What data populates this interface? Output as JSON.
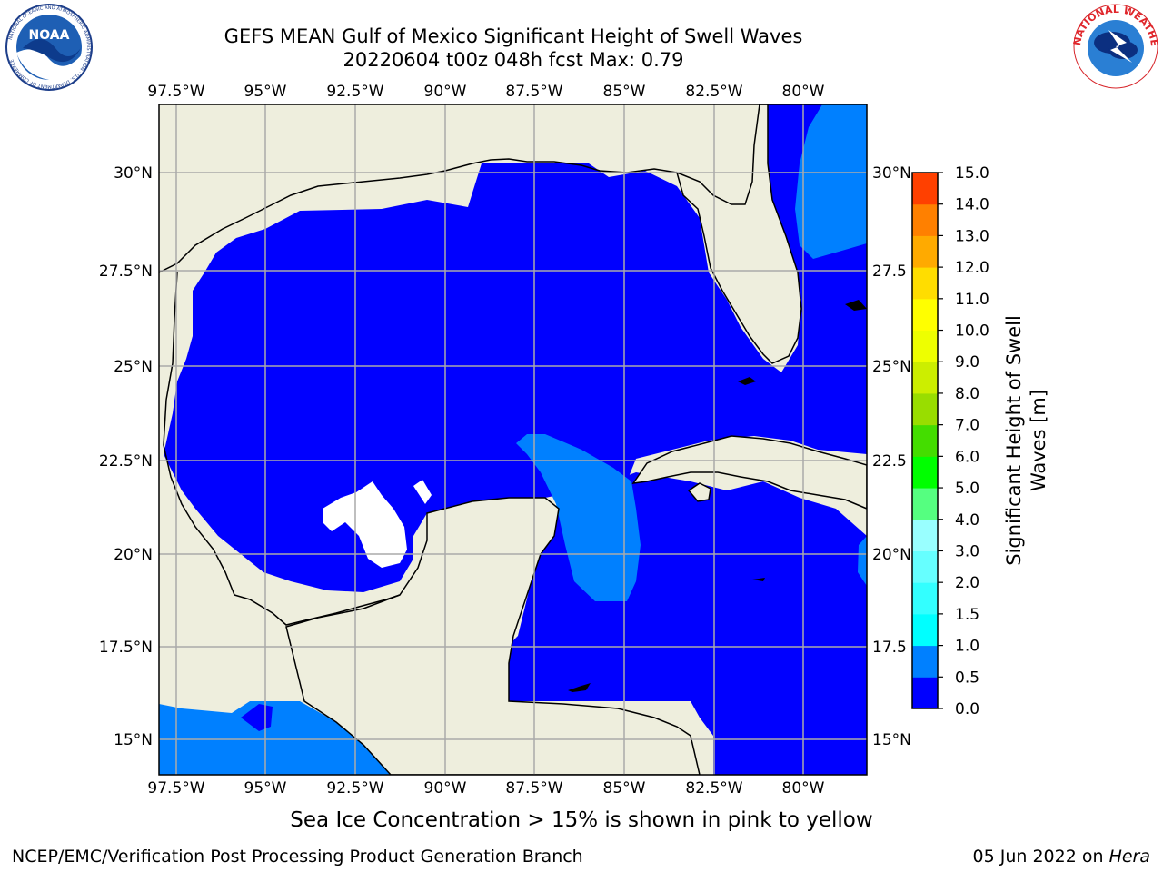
{
  "title": {
    "line1": "GEFS MEAN Gulf of Mexico Significant Height of Swell Waves",
    "line2": "20220604 t00z 048h fcst   Max: 0.79"
  },
  "logos": {
    "left": {
      "icon": "noaa-logo",
      "text": "NOAA",
      "ring_text": "NATIONAL OCEANIC AND ATMOSPHERIC ADMINISTRATION · U.S. DEPARTMENT OF COMMERCE"
    },
    "right": {
      "icon": "nws-logo",
      "ring_text": "NATIONAL WEATHER SERVICE"
    }
  },
  "map": {
    "lon_labels": [
      "97.5°W",
      "95°W",
      "92.5°W",
      "90°W",
      "87.5°W",
      "85°W",
      "82.5°W",
      "80°W"
    ],
    "lat_labels_left": [
      "30°N",
      "27.5°N",
      "25°N",
      "22.5°N",
      "20°N",
      "17.5°N",
      "15°N"
    ],
    "lat_labels_right": [
      "30°N",
      "27.5",
      "25°N",
      "22.5",
      "20°N",
      "17.5",
      "15°N"
    ],
    "colors": {
      "land": "#eeeedd",
      "sea_low": "#0000ff",
      "sea_mid": "#0080ff",
      "grid": "#aaaaaa",
      "coast": "#000000"
    }
  },
  "colorbar": {
    "label_line1": "Significant Height of Swell",
    "label_line2": "Waves [m]",
    "ticks": [
      "0.0",
      "0.5",
      "1.0",
      "1.5",
      "2.0",
      "3.0",
      "4.0",
      "5.0",
      "6.0",
      "7.0",
      "8.0",
      "9.0",
      "10.0",
      "11.0",
      "12.0",
      "13.0",
      "14.0",
      "15.0"
    ],
    "colors": [
      "#0000ff",
      "#0080ff",
      "#00ffff",
      "#33ffff",
      "#66ffff",
      "#99ffff",
      "#55ff80",
      "#00ff00",
      "#44dd00",
      "#99dd00",
      "#ccee00",
      "#eeff00",
      "#ffff00",
      "#ffdd00",
      "#ffaa00",
      "#ff8000",
      "#ff4000"
    ]
  },
  "subcaption": "Sea Ice Concentration > 15% is shown in pink to yellow",
  "footer": {
    "left": "NCEP/EMC/Verification Post Processing Product Generation Branch",
    "right_prefix": "05 Jun 2022 on ",
    "right_host": "Hera"
  }
}
